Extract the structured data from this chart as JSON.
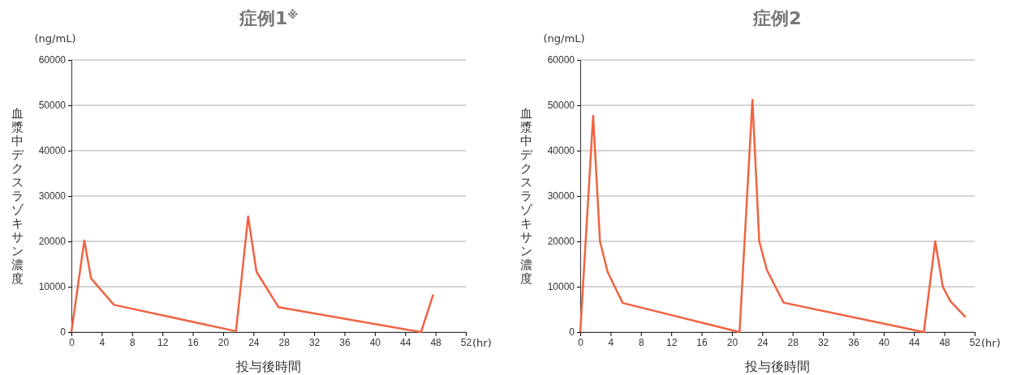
{
  "chart_data": [
    {
      "type": "line",
      "title": "症例1$^{※}$",
      "xlabel": "投与後時間",
      "ylabel": "血漿中デクスラゾキサン濃度",
      "annotations": [
        "(ng/mL)",
        "(hr)"
      ],
      "x": [
        0,
        1.7,
        2.6,
        5.6,
        21.7,
        23.3,
        24.4,
        27.3,
        46.1,
        47.7
      ],
      "series": [
        {
          "color": "#ef6342",
          "values": [
            0,
            20200,
            11800,
            6000,
            200,
            25500,
            13300,
            5500,
            0,
            8300
          ]
        }
      ],
      "xlim": [
        0,
        52
      ],
      "xticks": [
        0,
        4,
        8,
        12,
        16,
        20,
        24,
        28,
        32,
        36,
        40,
        44,
        48,
        52
      ],
      "ylim": [
        0,
        60000
      ],
      "yticks": [
        0,
        10000,
        20000,
        30000,
        40000,
        50000,
        60000
      ],
      "grid": "y",
      "marker": "none",
      "line_style": "solid"
    },
    {
      "type": "line",
      "title": "症例2",
      "xlabel": "投与後時間",
      "ylabel": "血漿中デクスラゾキサン濃度",
      "annotations": [
        "(ng/mL)",
        "(hr)"
      ],
      "x": [
        0,
        1.7,
        2.6,
        3.6,
        5.6,
        21,
        22.7,
        23.6,
        24.6,
        26.8,
        45.3,
        46.8,
        47.8,
        48.8,
        50.8
      ],
      "series": [
        {
          "color": "#ef6342",
          "values": [
            0,
            47700,
            20000,
            13300,
            6400,
            0,
            51200,
            20000,
            13700,
            6500,
            0,
            20000,
            10000,
            6800,
            3300
          ]
        }
      ],
      "xlim": [
        0,
        52
      ],
      "xticks": [
        0,
        4,
        8,
        12,
        16,
        20,
        24,
        28,
        32,
        36,
        40,
        44,
        48,
        52
      ],
      "ylim": [
        0,
        60000
      ],
      "yticks": [
        0,
        10000,
        20000,
        30000,
        40000,
        50000,
        60000
      ],
      "grid": "y",
      "marker": "none",
      "line_style": "solid"
    }
  ]
}
